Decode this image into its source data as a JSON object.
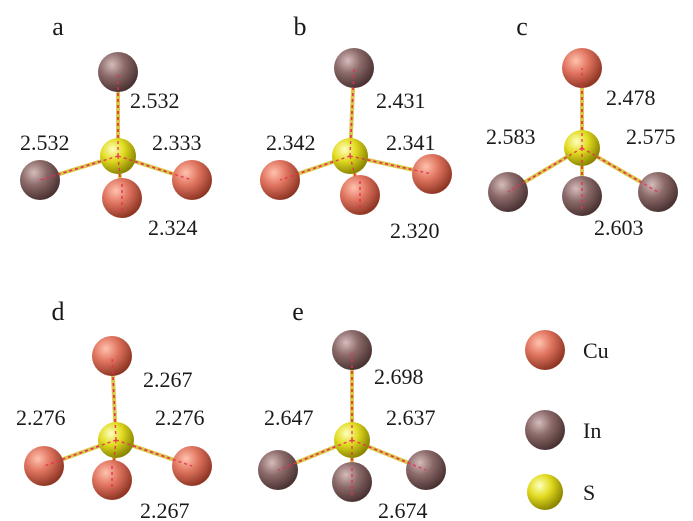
{
  "colors": {
    "Cu": "#e07560",
    "In": "#8c6a6a",
    "S": "#e2dc22",
    "bond_dash": "#e83050",
    "bond_stick": "#d9c94a"
  },
  "legend": [
    {
      "element": "Cu",
      "label": "Cu"
    },
    {
      "element": "In",
      "label": "In"
    },
    {
      "element": "S",
      "label": "S"
    }
  ],
  "panels": [
    {
      "letter": "a",
      "neighbors": [
        {
          "element": "In",
          "bond": "2.532"
        },
        {
          "element": "In",
          "bond": "2.532"
        },
        {
          "element": "Cu",
          "bond": "2.333"
        },
        {
          "element": "Cu",
          "bond": "2.324"
        }
      ]
    },
    {
      "letter": "b",
      "neighbors": [
        {
          "element": "In",
          "bond": "2.431"
        },
        {
          "element": "Cu",
          "bond": "2.342"
        },
        {
          "element": "Cu",
          "bond": "2.341"
        },
        {
          "element": "Cu",
          "bond": "2.320"
        }
      ]
    },
    {
      "letter": "c",
      "neighbors": [
        {
          "element": "Cu",
          "bond": "2.478"
        },
        {
          "element": "In",
          "bond": "2.583"
        },
        {
          "element": "In",
          "bond": "2.575"
        },
        {
          "element": "In",
          "bond": "2.603"
        }
      ]
    },
    {
      "letter": "d",
      "neighbors": [
        {
          "element": "Cu",
          "bond": "2.267"
        },
        {
          "element": "Cu",
          "bond": "2.276"
        },
        {
          "element": "Cu",
          "bond": "2.276"
        },
        {
          "element": "Cu",
          "bond": "2.267"
        }
      ]
    },
    {
      "letter": "e",
      "neighbors": [
        {
          "element": "In",
          "bond": "2.698"
        },
        {
          "element": "In",
          "bond": "2.647"
        },
        {
          "element": "In",
          "bond": "2.637"
        },
        {
          "element": "In",
          "bond": "2.674"
        }
      ]
    }
  ]
}
